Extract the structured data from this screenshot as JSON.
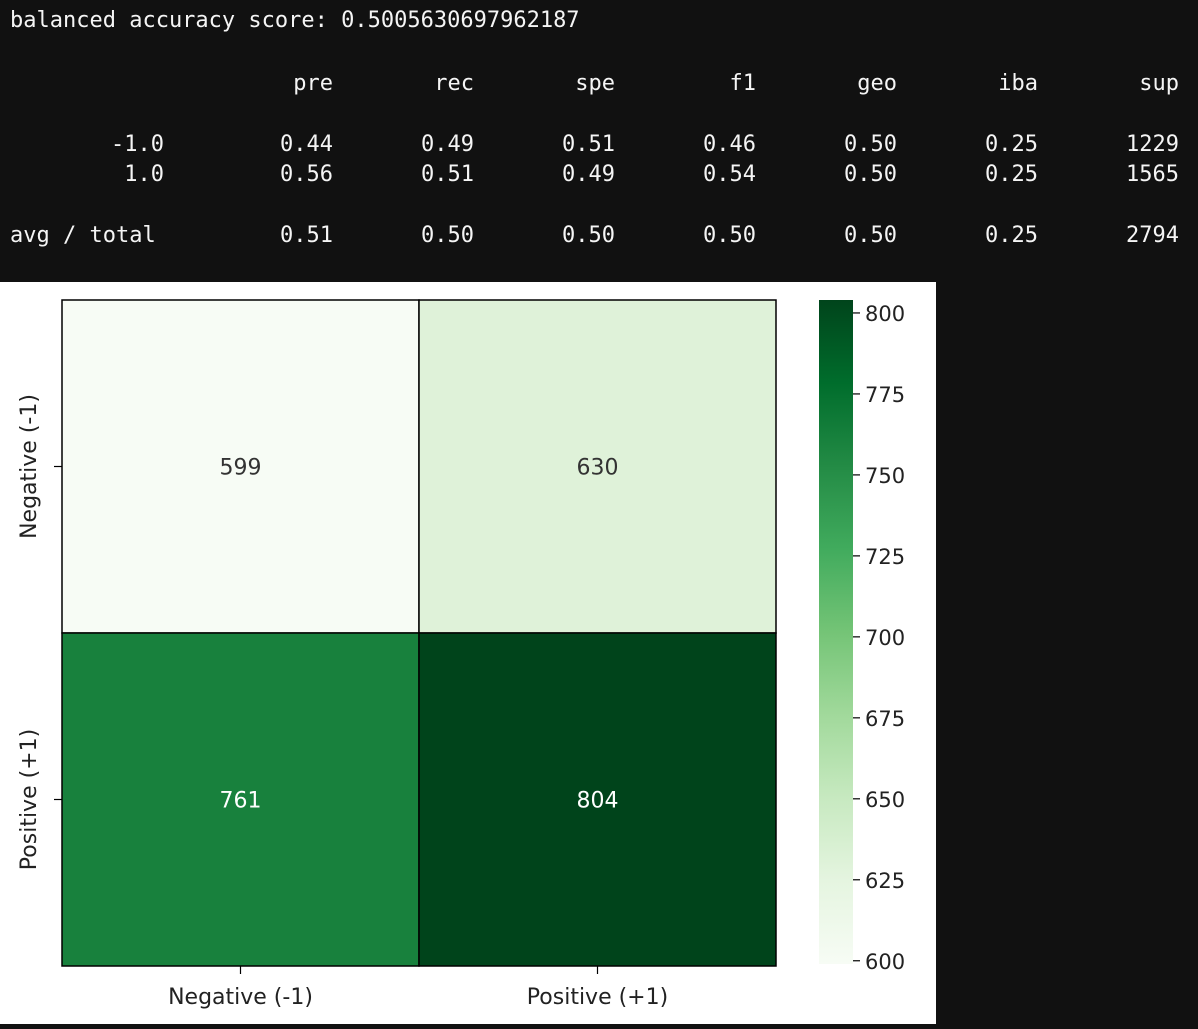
{
  "output": {
    "score_label": "balanced accuracy score:",
    "score_value": "0.5005630697962187",
    "report": {
      "columns": [
        "pre",
        "rec",
        "spe",
        "f1",
        "geo",
        "iba",
        "sup"
      ],
      "rows": [
        {
          "label": "-1.0",
          "values": [
            "0.44",
            "0.49",
            "0.51",
            "0.46",
            "0.50",
            "0.25",
            "1229"
          ]
        },
        {
          "label": "1.0",
          "values": [
            "0.56",
            "0.51",
            "0.49",
            "0.54",
            "0.50",
            "0.25",
            "1565"
          ]
        },
        {
          "label": "avg / total",
          "values": [
            "0.51",
            "0.50",
            "0.50",
            "0.50",
            "0.50",
            "0.25",
            "2794"
          ]
        }
      ]
    }
  },
  "chart_data": {
    "type": "heatmap",
    "title": "",
    "xlabel": "",
    "ylabel": "",
    "x_categories": [
      "Negative (-1)",
      "Positive (+1)"
    ],
    "y_categories": [
      "Negative (-1)",
      "Positive (+1)"
    ],
    "values": [
      [
        599,
        630
      ],
      [
        761,
        804
      ]
    ],
    "colormap": "Greens",
    "colorbar": {
      "min": 599,
      "max": 804,
      "ticks": [
        600,
        625,
        650,
        675,
        700,
        725,
        750,
        775,
        800
      ]
    }
  }
}
